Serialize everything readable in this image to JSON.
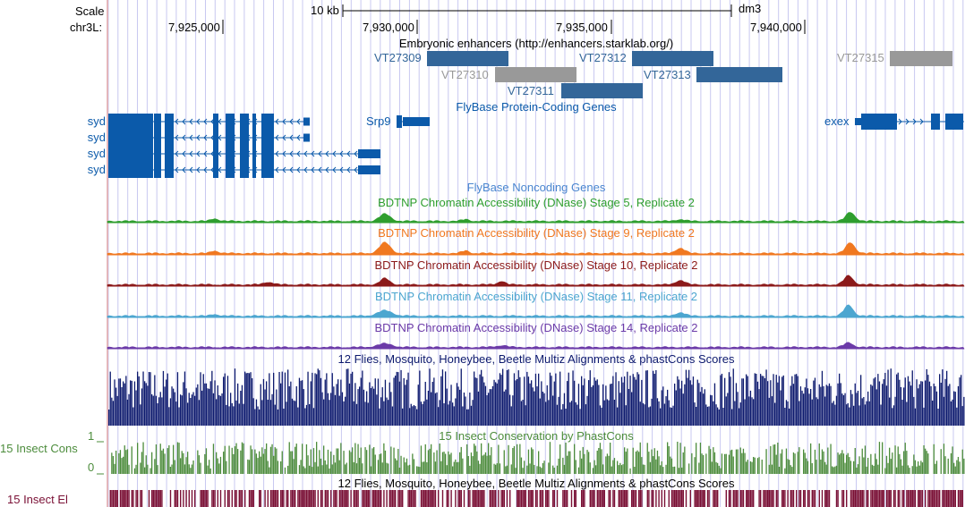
{
  "colors": {
    "enhancer_blue": "#336699",
    "enhancer_gray": "#999999",
    "flybase_blue": "#0B5AAA",
    "noncoding_blue": "#4A86D0",
    "stage5": "#2E9E2E",
    "stage9": "#F07820",
    "stage10": "#8C1A1A",
    "stage11": "#4CA6D0",
    "stage14": "#6B3AA8",
    "multiz": "#0D1A6E",
    "conservation": "#4C8C3C",
    "elements": "#7A1035",
    "grid": "#C8C8F0",
    "left_border": "#E4A8A8"
  },
  "header": {
    "scale_label": "Scale",
    "scale_bar_text": "10 kb",
    "assembly": "dm3",
    "chrom_label": "chr3L:",
    "positions": [
      "7,925,000",
      "7,930,000",
      "7,935,000",
      "7,940,000"
    ]
  },
  "tracks": {
    "enhancers": {
      "title": "Embryonic enhancers (http://enhancers.starklab.org/)",
      "items": [
        {
          "name": "VT27309",
          "color": "blue"
        },
        {
          "name": "VT27310",
          "color": "gray"
        },
        {
          "name": "VT27311",
          "color": "blue"
        },
        {
          "name": "VT27312",
          "color": "blue"
        },
        {
          "name": "VT27313",
          "color": "blue"
        },
        {
          "name": "VT27315",
          "color": "gray"
        }
      ]
    },
    "flybase_coding": {
      "title": "FlyBase Protein-Coding Genes",
      "genes": [
        "syd",
        "syd",
        "syd",
        "syd",
        "Srp9",
        "exex"
      ]
    },
    "flybase_noncoding": {
      "title": "FlyBase Noncoding Genes"
    },
    "dnase": [
      {
        "title": "BDTNP Chromatin Accessibility (DNase) Stage 5, Replicate 2"
      },
      {
        "title": "BDTNP Chromatin Accessibility (DNase) Stage 9, Replicate 2"
      },
      {
        "title": "BDTNP Chromatin Accessibility (DNase) Stage 10, Replicate 2"
      },
      {
        "title": "BDTNP Chromatin Accessibility (DNase) Stage 11, Replicate 2"
      },
      {
        "title": "BDTNP Chromatin Accessibility (DNase) Stage 14, Replicate 2"
      }
    ],
    "multiz": {
      "title": "12 Flies, Mosquito, Honeybee, Beetle Multiz Alignments & phastCons Scores"
    },
    "conservation": {
      "side_label": "15 Insect Cons",
      "title": "15 Insect Conservation by PhastCons",
      "axis_max": "1",
      "axis_min": "0"
    },
    "elements": {
      "side_label": "15 Insect El",
      "title": "12 Flies, Mosquito, Honeybee, Beetle Multiz Alignments & phastCons Scores"
    }
  }
}
